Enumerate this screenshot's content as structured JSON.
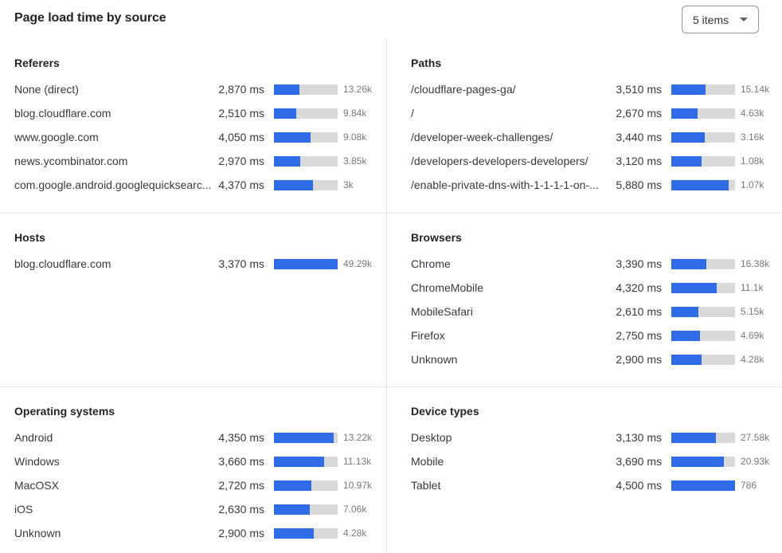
{
  "header": {
    "title": "Page load time by source",
    "items_dropdown": "5 items"
  },
  "colors": {
    "bar_fill": "#2e6be5",
    "bar_track": "#d9d9d9",
    "divider": "#e4e4e4"
  },
  "chart_data": [
    {
      "type": "bar",
      "title": "Referers",
      "orientation": "horizontal",
      "unit": "ms",
      "bar_scale_max": 7100,
      "categories": [
        "None (direct)",
        "blog.cloudflare.com",
        "www.google.com",
        "news.ycombinator.com",
        "com.google.android.googlequicksearc..."
      ],
      "values": [
        2870,
        2510,
        4050,
        2970,
        4370
      ],
      "value_labels": [
        "2,870 ms",
        "2,510 ms",
        "4,050 ms",
        "2,970 ms",
        "4,370 ms"
      ],
      "count_labels": [
        "13.26k",
        "9.84k",
        "9.08k",
        "3.85k",
        "3k"
      ]
    },
    {
      "type": "bar",
      "title": "Paths",
      "orientation": "horizontal",
      "unit": "ms",
      "bar_scale_max": 6500,
      "categories": [
        "/cloudflare-pages-ga/",
        "/",
        "/developer-week-challenges/",
        "/developers-developers-developers/",
        "/enable-private-dns-with-1-1-1-1-on-..."
      ],
      "values": [
        3510,
        2670,
        3440,
        3120,
        5880
      ],
      "value_labels": [
        "3,510 ms",
        "2,670 ms",
        "3,440 ms",
        "3,120 ms",
        "5,880 ms"
      ],
      "count_labels": [
        "15.14k",
        "4.63k",
        "3.16k",
        "1.08k",
        "1.07k"
      ]
    },
    {
      "type": "bar",
      "title": "Hosts",
      "orientation": "horizontal",
      "unit": "ms",
      "bar_scale_max": 3370,
      "categories": [
        "blog.cloudflare.com"
      ],
      "values": [
        3370
      ],
      "value_labels": [
        "3,370 ms"
      ],
      "count_labels": [
        "49.29k"
      ]
    },
    {
      "type": "bar",
      "title": "Browsers",
      "orientation": "horizontal",
      "unit": "ms",
      "bar_scale_max": 6100,
      "categories": [
        "Chrome",
        "ChromeMobile",
        "MobileSafari",
        "Firefox",
        "Unknown"
      ],
      "values": [
        3390,
        4320,
        2610,
        2750,
        2900
      ],
      "value_labels": [
        "3,390 ms",
        "4,320 ms",
        "2,610 ms",
        "2,750 ms",
        "2,900 ms"
      ],
      "count_labels": [
        "16.38k",
        "11.1k",
        "5.15k",
        "4.69k",
        "4.28k"
      ]
    },
    {
      "type": "bar",
      "title": "Operating systems",
      "orientation": "horizontal",
      "unit": "ms",
      "bar_scale_max": 4650,
      "categories": [
        "Android",
        "Windows",
        "MacOSX",
        "iOS",
        "Unknown"
      ],
      "values": [
        4350,
        3660,
        2720,
        2630,
        2900
      ],
      "value_labels": [
        "4,350 ms",
        "3,660 ms",
        "2,720 ms",
        "2,630 ms",
        "2,900 ms"
      ],
      "count_labels": [
        "13.22k",
        "11.13k",
        "10.97k",
        "7.06k",
        "4.28k"
      ]
    },
    {
      "type": "bar",
      "title": "Device types",
      "orientation": "horizontal",
      "unit": "ms",
      "bar_scale_max": 4500,
      "categories": [
        "Desktop",
        "Mobile",
        "Tablet"
      ],
      "values": [
        3130,
        3690,
        4500
      ],
      "value_labels": [
        "3,130 ms",
        "3,690 ms",
        "4,500 ms"
      ],
      "count_labels": [
        "27.58k",
        "20.93k",
        "786"
      ]
    }
  ]
}
